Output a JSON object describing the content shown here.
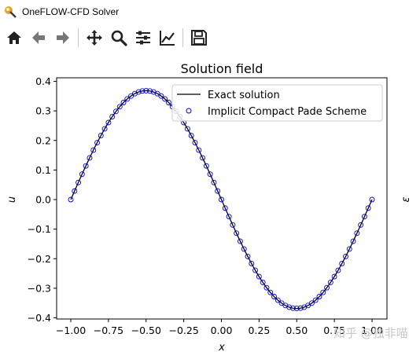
{
  "window": {
    "title": "OneFLOW-CFD Solver"
  },
  "toolbar": {
    "buttons": [
      {
        "name": "home-icon"
      },
      {
        "name": "back-arrow-icon"
      },
      {
        "name": "forward-arrow-icon"
      },
      {
        "name": "pan-move-icon"
      },
      {
        "name": "zoom-icon"
      },
      {
        "name": "subplots-configure-icon"
      },
      {
        "name": "edit-axis-icon"
      },
      {
        "name": "save-icon"
      }
    ]
  },
  "chart_data": {
    "type": "line",
    "title": "Solution field",
    "xlabel": "x",
    "ylabel": "u",
    "right_axis_label": "ε",
    "xlim": [
      -1.0,
      1.0
    ],
    "ylim": [
      -0.4,
      0.4
    ],
    "xticks": [
      "−1.00",
      "−0.75",
      "−0.50",
      "−0.25",
      "0.00",
      "0.25",
      "0.50",
      "0.75",
      "1.00"
    ],
    "yticks": [
      "0.4",
      "0.3",
      "0.2",
      "0.1",
      "0.0",
      "−0.1",
      "−0.2",
      "−0.3",
      "−0.4"
    ],
    "legend_position": "top-right",
    "series": [
      {
        "name": "Exact solution",
        "style": "solid-line",
        "color": "#000000",
        "function": "-0.3684*sin(pi*x)",
        "x_range": [
          -1.0,
          1.0
        ]
      },
      {
        "name": "Implicit Compact Pade Scheme",
        "style": "open-circle",
        "color": "#0000cc",
        "function": "-0.3684*sin(pi*x)",
        "x_range": [
          -1.0,
          1.0
        ],
        "num_points": 81
      }
    ],
    "amplitude": 0.3684
  },
  "watermark": "知乎 @独非喵"
}
